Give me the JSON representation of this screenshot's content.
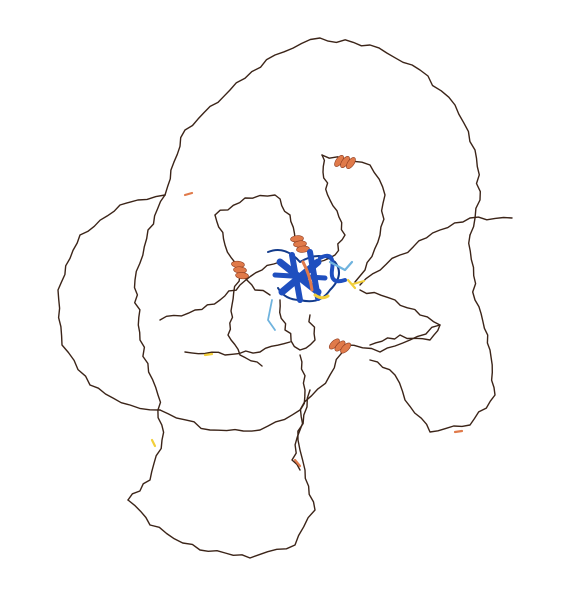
{
  "image": {
    "subject": "protein-structure-cartoon",
    "background_color": "#ffffff",
    "colors": {
      "very_low_confidence": "#3b2418",
      "low_confidence": "#e07a4a",
      "medium_confidence": "#f2cf3a",
      "high_confidence": "#6fb3de",
      "very_high_confidence": "#1f4fbf"
    }
  }
}
